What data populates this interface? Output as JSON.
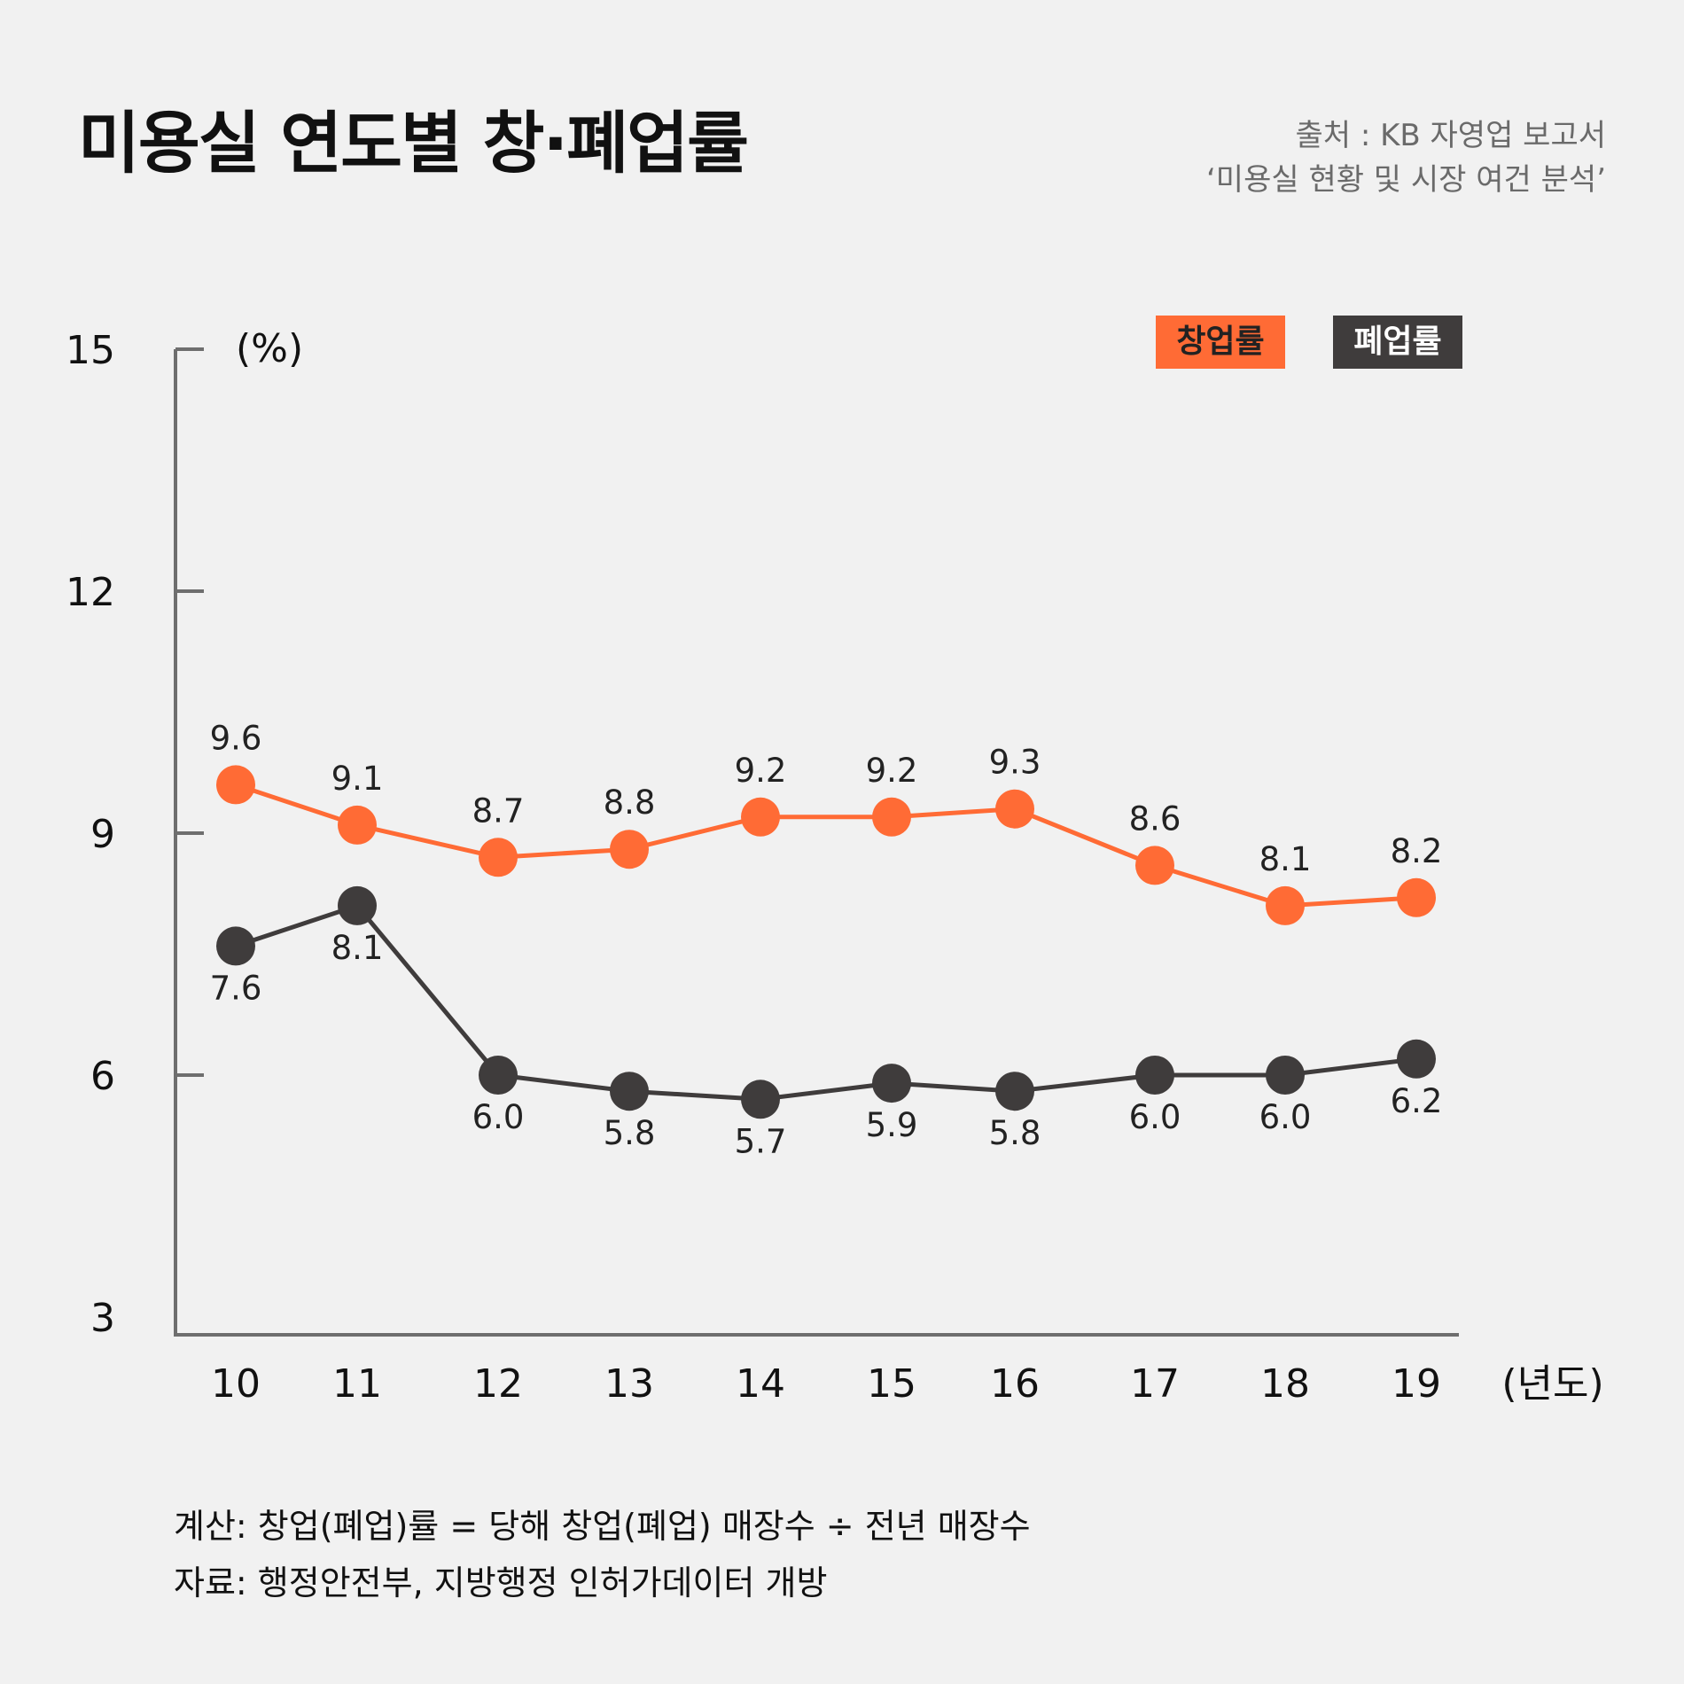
{
  "title": "미용실 연도별 창·폐업률",
  "source": {
    "line1": "출처 : KB 자영업 보고서",
    "line2": "‘미용실 현황 및 시장 여건 분석’"
  },
  "legend": {
    "open": "창업률",
    "close": "폐업률"
  },
  "footer": {
    "line1": "계산: 창업(폐업)률 = 당해 창업(폐업) 매장수 ÷ 전년 매장수",
    "line2": "자료: 행정안전부, 지방행정 인허가데이터 개방"
  },
  "colors": {
    "open": "#ff6b35",
    "close": "#3f3c3c",
    "axis": "#6e6e6e",
    "background": "#f1f1f1"
  },
  "chart_data": {
    "type": "line",
    "title": "미용실 연도별 창·폐업률",
    "ylabel": "(%)",
    "xlabel": "(년도)",
    "ylim": [
      3,
      15
    ],
    "yticks": [
      3,
      6,
      9,
      12,
      15
    ],
    "categories": [
      "10",
      "11",
      "12",
      "13",
      "14",
      "15",
      "16",
      "17",
      "18",
      "19"
    ],
    "grid": false,
    "legend_position": "top-right",
    "series": [
      {
        "name": "창업률",
        "color": "#ff6b35",
        "values": [
          9.6,
          9.1,
          8.7,
          8.8,
          9.2,
          9.2,
          9.3,
          8.6,
          8.1,
          8.2
        ],
        "labels": [
          "9.6",
          "9.1",
          "8.7",
          "8.8",
          "9.2",
          "9.2",
          "9.3",
          "8.6",
          "8.1",
          "8.2"
        ],
        "label_position": "above"
      },
      {
        "name": "폐업률",
        "color": "#3f3c3c",
        "values": [
          7.6,
          8.1,
          6.0,
          5.8,
          5.7,
          5.9,
          5.8,
          6.0,
          6.0,
          6.2
        ],
        "labels": [
          "7.6",
          "8.1",
          "6.0",
          "5.8",
          "5.7",
          "5.9",
          "5.8",
          "6.0",
          "6.0",
          "6.2"
        ],
        "label_position": "below"
      }
    ]
  }
}
